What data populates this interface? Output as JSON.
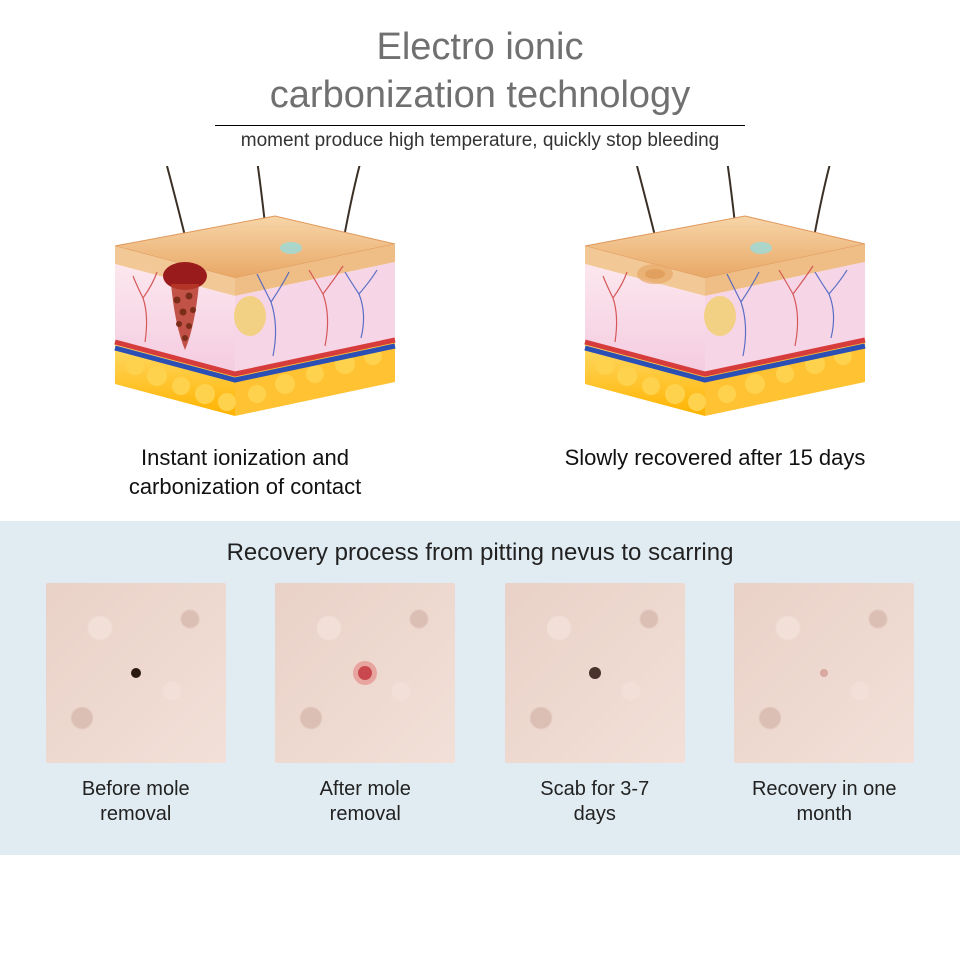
{
  "header": {
    "title_line1": "Electro ionic",
    "title_line2": "carbonization technology",
    "subtitle": "moment produce high temperature, quickly stop bleeding",
    "title_color": "#707070",
    "subtitle_color": "#333333",
    "divider_color": "#000000"
  },
  "diagrams": {
    "left_caption_line1": "Instant ionization and",
    "left_caption_line2": "carbonization of contact",
    "right_caption": "Slowly recovered after 15 days",
    "skin": {
      "epidermis_top": "#f7d5a8",
      "epidermis_edge": "#e8a866",
      "dermis_fill": "#fce7ee",
      "dermis_shadow": "#f4cbe0",
      "fat_fill": "#ffb300",
      "fat_highlight": "#ffd966",
      "vessel_red": "#d73c3c",
      "vessel_blue": "#2c4fb5",
      "capillary_red": "#d24a4a",
      "capillary_blue": "#4a63c2",
      "hair": "#3b3026",
      "gland": "#f2d07a",
      "mole": "#9a1b1b",
      "mole_particles": "#7a2d1a"
    }
  },
  "recovery": {
    "title": "Recovery process from pitting nevus to scarring",
    "bg": "#e1ecf2",
    "skin_base": "#e9d1c7",
    "skin_light": "#f2e0d8",
    "skin_shadow": "#dbbfb4",
    "stages": [
      {
        "label_line1": "Before mole",
        "label_line2": "removal",
        "lesion_color": "#2a1a12",
        "lesion_size": 10,
        "ring": null
      },
      {
        "label_line1": "After mole",
        "label_line2": "removal",
        "lesion_color": "#c9484d",
        "lesion_size": 14,
        "ring": "#e8a5a0"
      },
      {
        "label_line1": "Scab for 3-7",
        "label_line2": "days",
        "lesion_color": "#4a332c",
        "lesion_size": 12,
        "ring": null
      },
      {
        "label_line1": "Recovery in one",
        "label_line2": "month",
        "lesion_color": "#d9a8a0",
        "lesion_size": 8,
        "ring": null
      }
    ]
  }
}
